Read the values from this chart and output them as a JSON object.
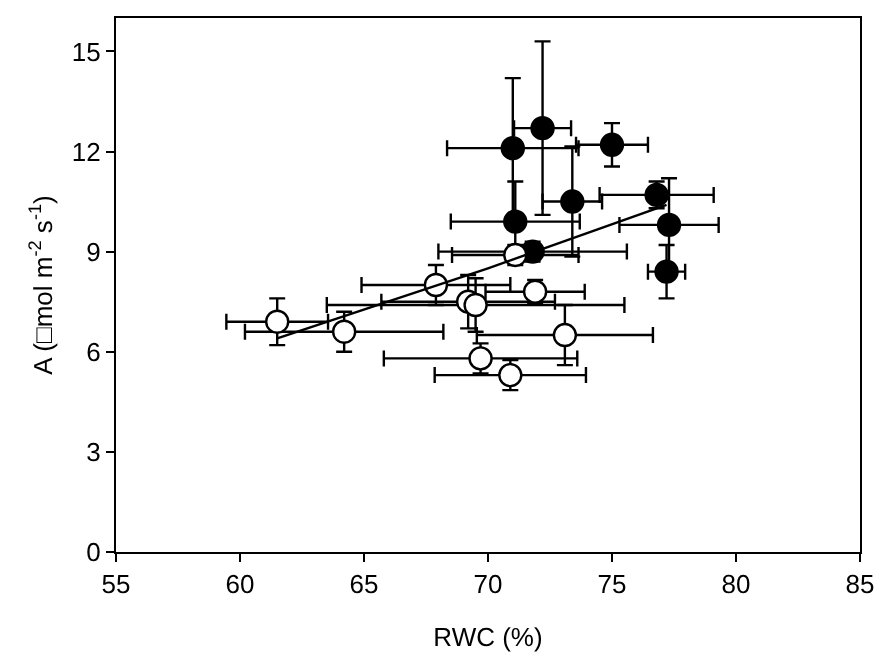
{
  "chart_data": {
    "type": "scatter",
    "xlabel": "RWC (%)",
    "ylabel": "A (□mol m$^{-2}$ s$^{-1}$)",
    "xlim": [
      55,
      85
    ],
    "xticks": [
      55,
      60,
      65,
      70,
      75,
      80,
      85
    ],
    "ylim": [
      0,
      16
    ],
    "yticks": [
      0,
      3,
      6,
      9,
      12,
      15
    ],
    "marker": "circle",
    "series": [
      {
        "color": "#000000",
        "x": [
          71.0,
          72.2,
          75.0,
          73.4,
          76.8,
          71.1,
          77.3,
          71.8,
          77.2
        ],
        "values": [
          12.1,
          12.7,
          12.2,
          10.5,
          10.7,
          9.9,
          9.8,
          9.0,
          8.4
        ],
        "errors": [
          2.1,
          2.6,
          0.65,
          1.65,
          0.4,
          1.2,
          1.4,
          0.3,
          0.8
        ],
        "xerrors": [
          2.65,
          1.15,
          1.45,
          1.2,
          2.3,
          2.6,
          2.0,
          3.8,
          0.75
        ]
      },
      {
        "color": "#ffffff",
        "x": [
          71.1,
          67.9,
          69.2,
          69.5,
          71.9,
          61.5,
          64.2,
          73.1,
          69.7,
          70.9
        ],
        "values": [
          8.9,
          8.0,
          7.5,
          7.4,
          7.8,
          6.9,
          6.6,
          6.5,
          5.8,
          5.3
        ],
        "errors": [
          0.3,
          0.6,
          0.8,
          0.8,
          0.35,
          0.7,
          0.6,
          0.9,
          0.45,
          0.45
        ],
        "xerrors": [
          2.55,
          3.0,
          3.5,
          6.0,
          2.0,
          2.05,
          4.0,
          3.55,
          3.9,
          3.05
        ]
      },
      {
        "type": "line",
        "color": "#000000",
        "marker": "none",
        "x": [
          61.5,
          70.0,
          77.2
        ],
        "values": [
          6.4,
          8.5,
          10.4
        ]
      }
    ]
  }
}
